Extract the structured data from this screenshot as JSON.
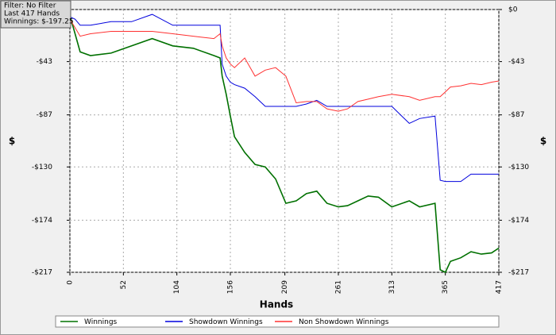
{
  "chart_data": {
    "type": "line",
    "info": [
      "Filter: No Filter",
      "Last  417 Hands",
      "Winnings: $-197.25"
    ],
    "x_label": "Hands",
    "y_label": "$",
    "x": [
      0,
      5,
      10,
      20,
      40,
      60,
      80,
      100,
      120,
      140,
      146,
      148,
      152,
      156,
      160,
      170,
      180,
      190,
      200,
      210,
      220,
      230,
      240,
      250,
      261,
      270,
      280,
      290,
      300,
      313,
      330,
      340,
      355,
      360,
      365,
      370,
      380,
      390,
      400,
      410,
      417
    ],
    "series": [
      {
        "name": "Winnings",
        "color": "#007000",
        "values": [
          -5,
          -20,
          -35,
          -38,
          -36,
          -30,
          -24,
          -30,
          -32,
          -38,
          -40,
          -55,
          -70,
          -88,
          -105,
          -118,
          -128,
          -130,
          -140,
          -160,
          -158,
          -152,
          -150,
          -160,
          -163,
          -162,
          -158,
          -154,
          -155,
          -163,
          -158,
          -163,
          -160,
          -215,
          -217,
          -208,
          -205,
          -200,
          -202,
          -201,
          -197
        ]
      },
      {
        "name": "Showdown Winnings",
        "color": "#0000dd",
        "values": [
          -6,
          -8,
          -13,
          -13,
          -10,
          -10,
          -4,
          -13,
          -13,
          -13,
          -13,
          -45,
          -55,
          -60,
          -62,
          -65,
          -72,
          -80,
          -80,
          -80,
          -80,
          -78,
          -75,
          -80,
          -80,
          -80,
          -80,
          -80,
          -80,
          -80,
          -94,
          -90,
          -88,
          -141,
          -142,
          -142,
          -142,
          -136,
          -136,
          -136,
          -136
        ]
      },
      {
        "name": "Non Showdown Winnings",
        "color": "#ff3030",
        "values": [
          -8,
          -15,
          -22,
          -20,
          -18,
          -18,
          -18,
          -20,
          -22,
          -24,
          -20,
          -30,
          -40,
          -45,
          -48,
          -40,
          -55,
          -50,
          -48,
          -55,
          -77,
          -76,
          -76,
          -82,
          -84,
          -82,
          -76,
          -74,
          -72,
          -70,
          -72,
          -75,
          -72,
          -72,
          -68,
          -64,
          -63,
          -61,
          -62,
          -60,
          -59
        ]
      }
    ],
    "xlim": [
      0,
      417
    ],
    "xticks": [
      0,
      52,
      104,
      156,
      209,
      261,
      313,
      365,
      417
    ],
    "ylim": [
      -217,
      0
    ],
    "yticks": [
      {
        "value": 0,
        "label": "$0"
      },
      {
        "value": -43,
        "label": "-$43"
      },
      {
        "value": -87,
        "label": "-$87"
      },
      {
        "value": -130,
        "label": "-$130"
      },
      {
        "value": -174,
        "label": "-$174"
      },
      {
        "value": -217,
        "label": "-$217"
      }
    ],
    "grid": true
  }
}
